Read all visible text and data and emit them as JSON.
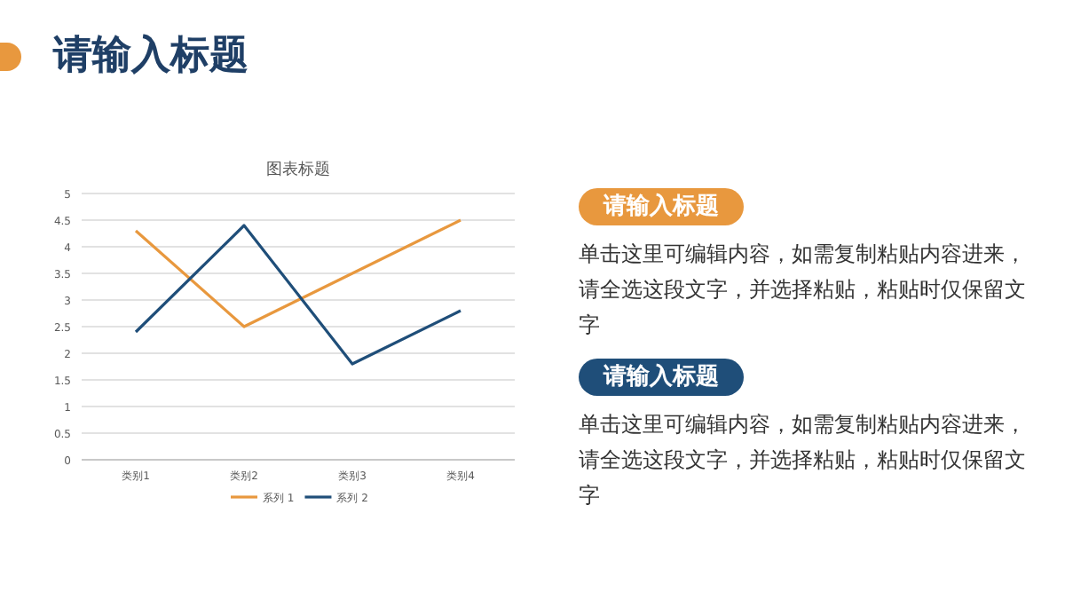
{
  "chart_data": {
    "type": "line",
    "title": "图表标题",
    "categories": [
      "类别1",
      "类别2",
      "类别3",
      "类别4"
    ],
    "series": [
      {
        "name": "系列 1",
        "color": "#e8983e",
        "values": [
          4.3,
          2.5,
          3.5,
          4.5
        ]
      },
      {
        "name": "系列 2",
        "color": "#1f4e79",
        "values": [
          2.4,
          4.4,
          1.8,
          2.8
        ]
      }
    ],
    "ylim": [
      0,
      5
    ],
    "yticks": [
      0,
      0.5,
      1,
      1.5,
      2,
      2.5,
      3,
      3.5,
      4,
      4.5,
      5
    ],
    "grid": "y",
    "legend": "bottom",
    "annotations": [
      "请输入标题",
      "请输入标题",
      "单击这里可编辑内容，如需复制粘贴内容进来，请全选这段文字，并选择粘贴，粘贴时仅保留文字",
      "请输入标题",
      "单击这里可编辑内容，如需复制粘贴内容进来，请全选这段文字，并选择粘贴，粘贴时仅保留文字"
    ]
  }
}
